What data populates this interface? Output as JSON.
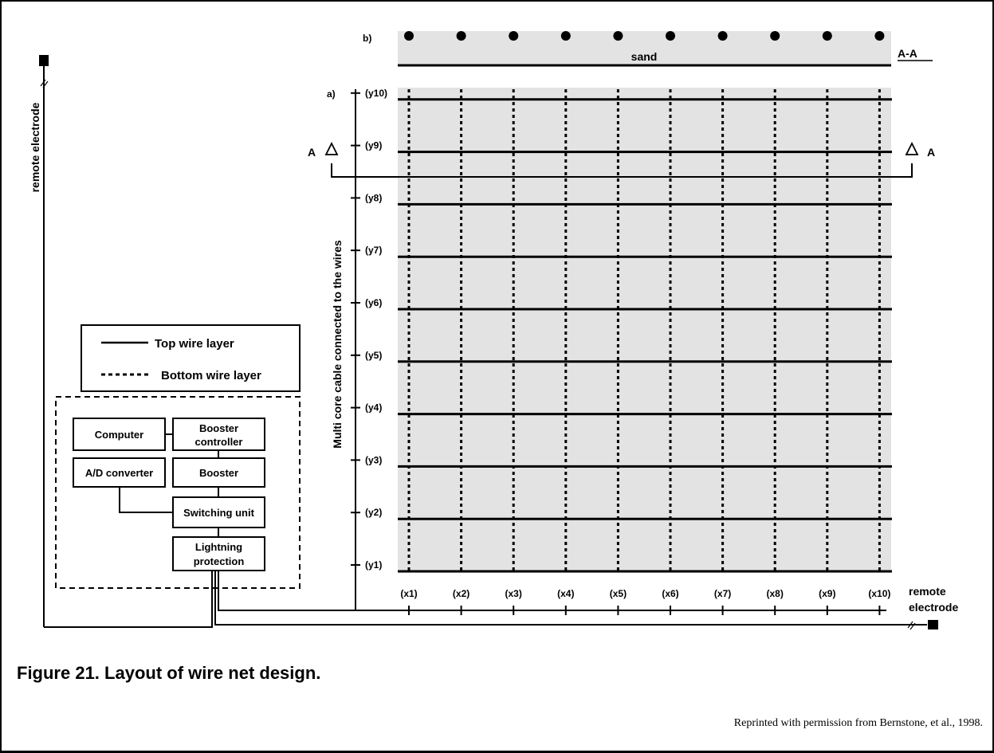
{
  "section_labels": {
    "plan_view": "a)",
    "cross_section": "b)"
  },
  "section_mark": {
    "letter": "A",
    "title": "A-A"
  },
  "sand_label": "sand",
  "cable_label": "Multi core cable connected to the wires",
  "remote_electrode_left": "remote electrode",
  "remote_electrode_right": [
    "remote",
    "electrode"
  ],
  "legend": {
    "top": "Top wire layer",
    "bottom": "Bottom wire layer"
  },
  "y_labels": [
    "(y1)",
    "(y2)",
    "(y3)",
    "(y4)",
    "(y5)",
    "(y6)",
    "(y7)",
    "(y8)",
    "(y9)",
    "(y10)"
  ],
  "x_labels": [
    "(x1)",
    "(x2)",
    "(x3)",
    "(x4)",
    "(x5)",
    "(x6)",
    "(x7)",
    "(x8)",
    "(x9)",
    "(x10)"
  ],
  "equipment": {
    "computer": [
      "Computer"
    ],
    "booster_controller": [
      "Booster",
      "controller"
    ],
    "ad_converter": [
      "A/D converter"
    ],
    "booster": [
      "Booster"
    ],
    "switching_unit": [
      "Switching unit"
    ],
    "lightning_protection": [
      "Lightning",
      "protection"
    ]
  },
  "caption": "Figure 21. Layout of wire net design.",
  "credit": "Reprinted with permission from Bernstone, et al., 1998.",
  "colors": {
    "panel": "#e3e3e3",
    "line": "#000000",
    "background": "#ffffff"
  }
}
